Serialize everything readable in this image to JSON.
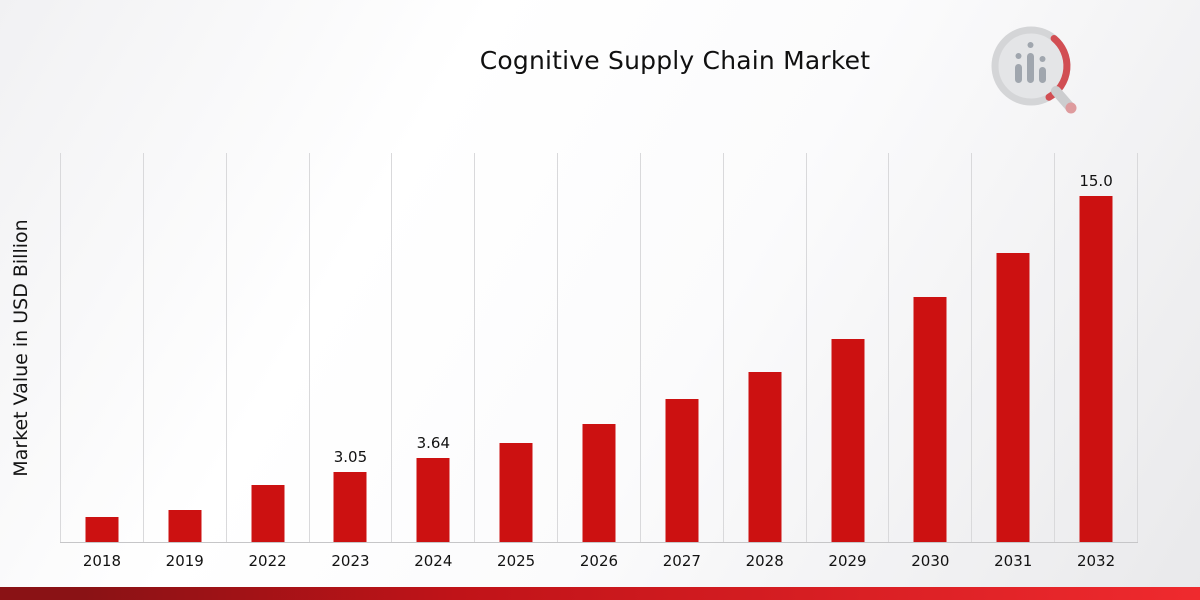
{
  "icons": {
    "logo": "bar-chart-magnifier-logo"
  },
  "colors": {
    "bar": "#CC1111",
    "strip_left": "#8A1215",
    "strip_mid": "#C01318",
    "strip_right": "#EF2A2E",
    "gridline": "#D9D9DB"
  },
  "chart_data": {
    "type": "bar",
    "title": "Cognitive Supply Chain Market",
    "xlabel": "",
    "ylabel": "Market Value in USD Billion",
    "categories": [
      "2018",
      "2019",
      "2022",
      "2023",
      "2024",
      "2025",
      "2026",
      "2027",
      "2028",
      "2029",
      "2030",
      "2031",
      "2032"
    ],
    "values": [
      1.1,
      1.4,
      2.45,
      3.05,
      3.64,
      4.3,
      5.1,
      6.2,
      7.35,
      8.8,
      10.6,
      12.5,
      15.0
    ],
    "data_labels": [
      "",
      "",
      "",
      "3.05",
      "3.64",
      "",
      "",
      "",
      "",
      "",
      "",
      "",
      "15.0"
    ],
    "bar_color": "#CC1111",
    "ylim": [
      0,
      16.85
    ],
    "grid": "vertical",
    "legend": "none"
  }
}
